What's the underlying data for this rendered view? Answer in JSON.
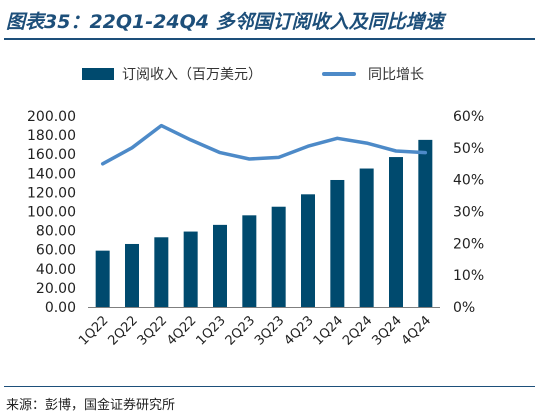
{
  "title": "图表35：22Q1-24Q4 多邻国订阅收入及同比增速",
  "source": "来源：彭博，国金证券研究所",
  "chart_data": {
    "type": "bar",
    "categories": [
      "1Q22",
      "2Q22",
      "3Q22",
      "4Q22",
      "1Q23",
      "2Q23",
      "3Q23",
      "4Q23",
      "1Q24",
      "2Q24",
      "3Q24",
      "4Q24"
    ],
    "series": [
      {
        "name": "订阅收入（百万美元）",
        "type": "bar",
        "axis": "left",
        "color": "#004a6e",
        "values": [
          59,
          66,
          73,
          79,
          86,
          96,
          105,
          118,
          133,
          145,
          157,
          175
        ]
      },
      {
        "name": "同比增长",
        "type": "line",
        "axis": "right",
        "color": "#4d8ac8",
        "values": [
          45,
          50,
          57,
          52.5,
          48.5,
          46.5,
          47,
          50.5,
          53,
          51.5,
          49,
          48.5
        ]
      }
    ],
    "y_left": {
      "min": 0,
      "max": 200,
      "ticks": [
        "0.00",
        "20.00",
        "40.00",
        "60.00",
        "80.00",
        "100.00",
        "120.00",
        "140.00",
        "160.00",
        "180.00",
        "200.00"
      ]
    },
    "y_right": {
      "min": 0,
      "max": 60,
      "ticks": [
        "0%",
        "10%",
        "20%",
        "30%",
        "40%",
        "50%",
        "60%"
      ]
    },
    "legend_position": "top",
    "grid": false
  }
}
